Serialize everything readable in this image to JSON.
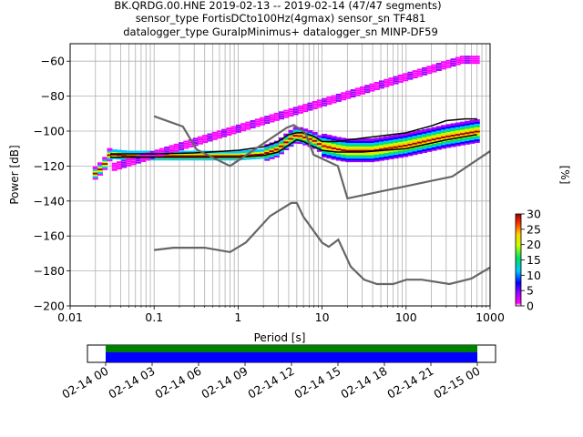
{
  "chart_data": [
    {
      "type": "heatmap",
      "title_lines": [
        "BK.QRDG.00.HNE   2019-02-13 -- 2019-02-14  (47/47 segments)",
        "sensor_type FortisDCto100Hz(4gmax) sensor_sn TF481",
        "datalogger_type GuralpMinimus+ datalogger_sn MINP-DF59"
      ],
      "xlabel": "Period [s]",
      "ylabel": "Power [dB]",
      "xscale": "log",
      "xlim": [
        0.01,
        1000
      ],
      "ylim": [
        -200,
        -50
      ],
      "x_ticks": [
        0.01,
        0.1,
        1,
        10,
        100,
        1000
      ],
      "x_tick_labels": [
        "0.01",
        "0.1",
        "1",
        "10",
        "100",
        "1000"
      ],
      "y_ticks": [
        -200,
        -180,
        -160,
        -140,
        -120,
        -100,
        -80,
        -60
      ],
      "y_tick_labels": [
        "−200",
        "−180",
        "−160",
        "−140",
        "−120",
        "−100",
        "−80",
        "−60"
      ],
      "grid": true,
      "colorbar": {
        "label": "[%]",
        "range": [
          0,
          30
        ],
        "ticks": [
          0,
          5,
          10,
          15,
          20,
          25,
          30
        ],
        "tick_labels": [
          "0",
          "5",
          "10",
          "15",
          "20",
          "25",
          "30"
        ]
      },
      "series": [
        {
          "role": "mode",
          "color": "#c8c8c8",
          "x": [
            0.02,
            0.025,
            0.03,
            0.05,
            0.1,
            0.3,
            0.6,
            1,
            2,
            3,
            4,
            5,
            6,
            8,
            10,
            15,
            20,
            40,
            100,
            300,
            700
          ],
          "y": [
            -124,
            -120,
            -113,
            -114,
            -114,
            -114,
            -114,
            -114,
            -113,
            -110,
            -105,
            -102,
            -103,
            -105,
            -108,
            -110,
            -111,
            -111,
            -108,
            -103,
            -100
          ]
        },
        {
          "role": "upper-percentile",
          "color": "#000000",
          "x": [
            0.03,
            0.1,
            0.3,
            1,
            2,
            3,
            4,
            5,
            6,
            8,
            10,
            15,
            30,
            100,
            200,
            300,
            500,
            700
          ],
          "y": [
            -113,
            -113,
            -112.5,
            -111,
            -109,
            -106,
            -102,
            -101,
            -101,
            -103,
            -106,
            -106,
            -104,
            -101,
            -97,
            -94,
            -93,
            -93
          ]
        },
        {
          "role": "lower-percentile",
          "color": "#000000",
          "x": [
            0.03,
            0.1,
            0.3,
            1,
            2,
            3,
            4,
            5,
            6,
            8,
            10,
            15,
            30,
            100,
            300,
            700
          ],
          "y": [
            -115,
            -115,
            -115,
            -115,
            -114,
            -112,
            -108,
            -105,
            -106,
            -109,
            -111,
            -112,
            -112,
            -110,
            -105,
            -102
          ]
        },
        {
          "role": "noise-model-high",
          "color": "#666666",
          "x": [
            0.1,
            0.22,
            0.32,
            0.8,
            3.8,
            4.6,
            6.3,
            7.9,
            15.4,
            20,
            354.8,
            1000
          ],
          "y": [
            -91.5,
            -97.4,
            -110.5,
            -120,
            -98,
            -96.5,
            -101,
            -113.5,
            -120,
            -138.5,
            -126,
            -111.5
          ]
        },
        {
          "role": "noise-model-low",
          "color": "#666666",
          "x": [
            0.1,
            0.17,
            0.4,
            0.8,
            1.24,
            2.4,
            4.3,
            5.0,
            6.0,
            10.0,
            12.0,
            15.6,
            21.9,
            31.6,
            45,
            70,
            101,
            154,
            328,
            600,
            1000
          ],
          "y": [
            -168,
            -166.7,
            -166.7,
            -169.2,
            -163.7,
            -148.6,
            -141.1,
            -141.1,
            -149.0,
            -163.8,
            -166.2,
            -162.1,
            -177.5,
            -185.0,
            -187.5,
            -187.5,
            -185.0,
            -185.0,
            -187.5,
            -184.4,
            -178.0
          ]
        }
      ]
    },
    {
      "type": "timeline",
      "x_tick_labels": [
        "02-14 00",
        "02-14 03",
        "02-14 06",
        "02-14 09",
        "02-14 12",
        "02-14 15",
        "02-14 18",
        "02-14 21",
        "02-15 00"
      ],
      "colors": {
        "data": "#0000ff",
        "coverage": "#008000"
      }
    }
  ]
}
